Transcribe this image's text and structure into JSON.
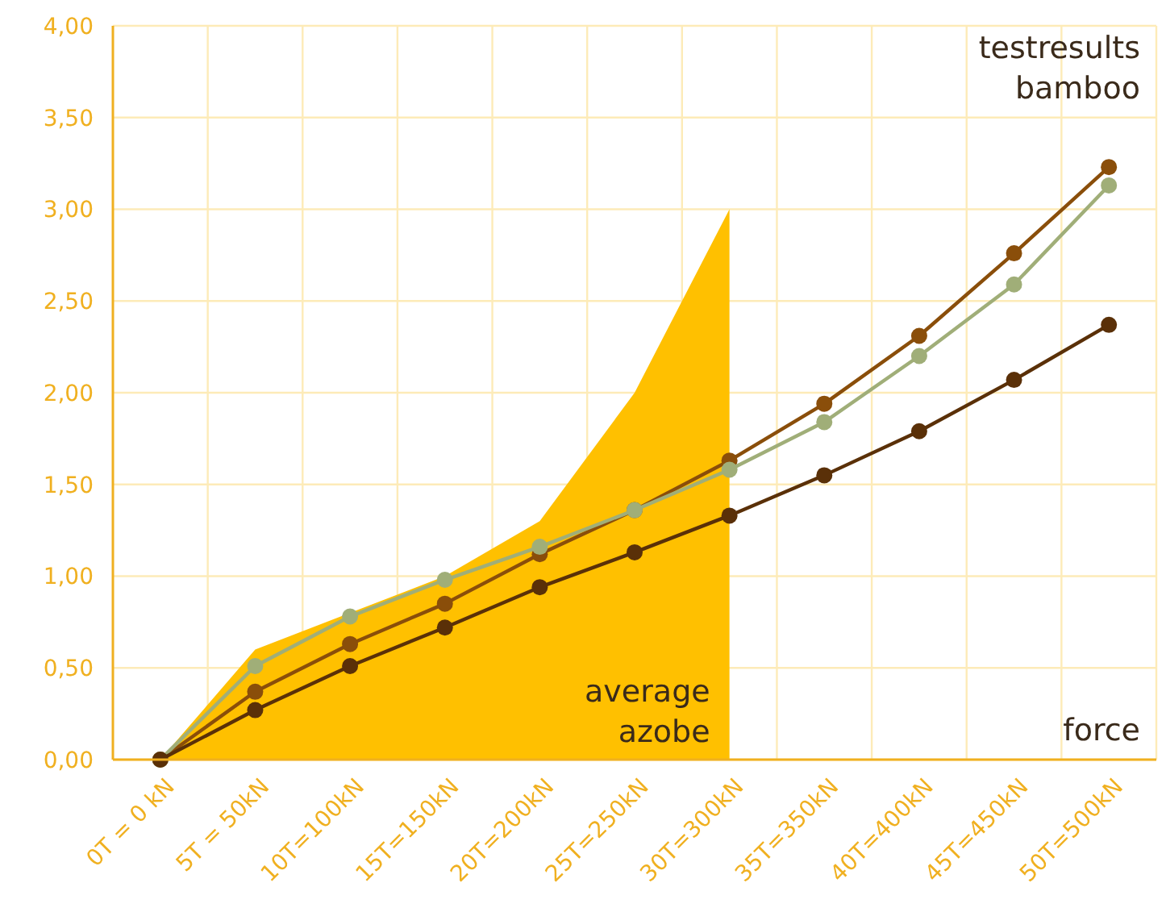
{
  "chart_data": {
    "type": "line",
    "xlabel": "force",
    "categories": [
      "0T = 0 kN",
      "5T = 50kN",
      "10T=100kN",
      "15T=150kN",
      "20T=200kN",
      "25T=250kN",
      "30T=300kN",
      "35T=350kN",
      "40T=400kN",
      "45T=450kN",
      "50T=500kN"
    ],
    "series": [
      {
        "type": "area",
        "name": "average azobe",
        "color": "#ffc000",
        "values": [
          0,
          0.6,
          0.8,
          1.0,
          1.3,
          2.0,
          3.0,
          null,
          null,
          null,
          null
        ]
      },
      {
        "color": "#8a4e0a",
        "marker": "circle",
        "values": [
          0,
          0.37,
          0.63,
          0.85,
          1.12,
          1.36,
          1.63,
          1.94,
          2.31,
          2.76,
          3.23
        ]
      },
      {
        "color": "#a0ae78",
        "marker": "circle",
        "values": [
          0,
          0.51,
          0.78,
          0.98,
          1.16,
          1.36,
          1.58,
          1.84,
          2.2,
          2.59,
          3.13
        ]
      },
      {
        "color": "#5a3008",
        "marker": "circle",
        "values": [
          0,
          0.27,
          0.51,
          0.72,
          0.94,
          1.13,
          1.33,
          1.55,
          1.79,
          2.07,
          2.37
        ]
      }
    ],
    "ylim": [
      0,
      4
    ],
    "yticks": [
      {
        "value": 0,
        "label": "0,00"
      },
      {
        "value": 0.5,
        "label": "0,50"
      },
      {
        "value": 1,
        "label": "1,00"
      },
      {
        "value": 1.5,
        "label": "1,50"
      },
      {
        "value": 2,
        "label": "2,00"
      },
      {
        "value": 2.5,
        "label": "2,50"
      },
      {
        "value": 3,
        "label": "3,00"
      },
      {
        "value": 3.5,
        "label": "3,50"
      },
      {
        "value": 4,
        "label": "4,00"
      }
    ],
    "grid": true,
    "line_style": "solid",
    "annotations": [
      "testresults bamboo"
    ]
  }
}
